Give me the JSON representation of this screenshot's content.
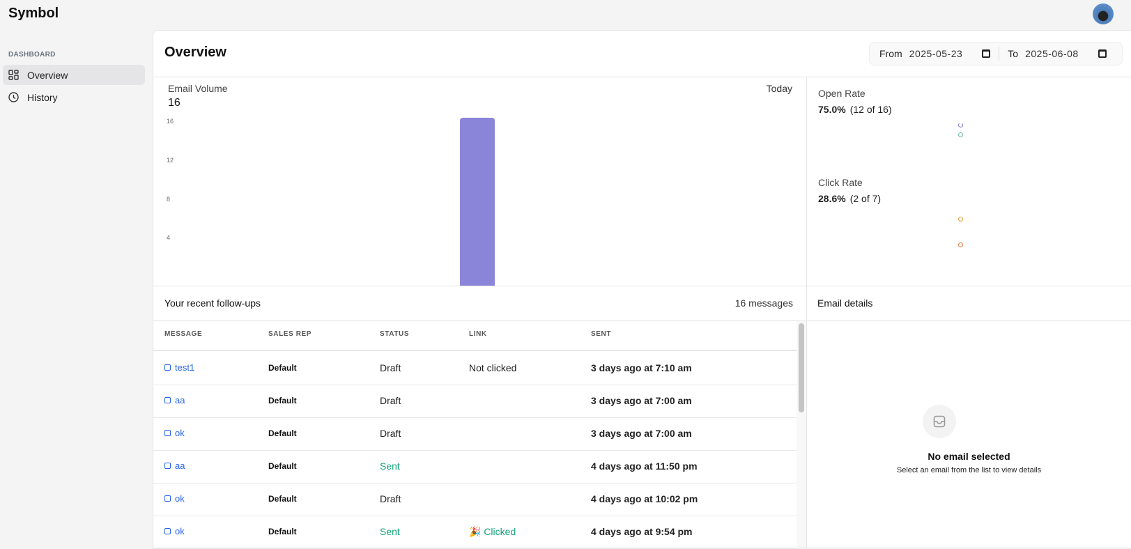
{
  "app": {
    "title": "Symbol"
  },
  "sidebar": {
    "section": "DASHBOARD",
    "items": [
      {
        "label": "Overview",
        "icon": "grid-icon",
        "active": true
      },
      {
        "label": "History",
        "icon": "clock-icon",
        "active": false
      }
    ]
  },
  "header": {
    "title": "Overview",
    "from_label": "From",
    "from_value": "2025-05-23",
    "to_label": "To",
    "to_value": "2025-06-08"
  },
  "volume": {
    "label": "Email Volume",
    "value": "16",
    "range_label": "Today"
  },
  "chart_data": [
    {
      "type": "bar",
      "title": "Email Volume",
      "categories": [
        "Today"
      ],
      "values": [
        16
      ],
      "yticks": [
        4,
        8,
        12,
        16
      ],
      "ylim": [
        0,
        16
      ],
      "color": "#8b85d9"
    },
    {
      "type": "scatter",
      "title": "Open Rate",
      "colors": [
        "#7c7ce0",
        "#6fb8a8"
      ]
    },
    {
      "type": "scatter",
      "title": "Click Rate",
      "colors": [
        "#e89a3c",
        "#e07a3c"
      ]
    }
  ],
  "open_rate": {
    "label": "Open Rate",
    "value": "75.0%",
    "detail": "(12 of 16)"
  },
  "click_rate": {
    "label": "Click Rate",
    "value": "28.6%",
    "detail": "(2 of 7)"
  },
  "followups": {
    "title": "Your recent follow-ups",
    "count": "16 messages",
    "columns": [
      "MESSAGE",
      "SALES REP",
      "STATUS",
      "LINK",
      "SENT"
    ],
    "rows": [
      {
        "message": "test1",
        "rep": "Default",
        "status": "Draft",
        "link": "Not clicked",
        "sent": "3 days ago at 7:10 am"
      },
      {
        "message": "aa",
        "rep": "Default",
        "status": "Draft",
        "link": "",
        "sent": "3 days ago at 7:00 am"
      },
      {
        "message": "ok",
        "rep": "Default",
        "status": "Draft",
        "link": "",
        "sent": "3 days ago at 7:00 am"
      },
      {
        "message": "aa",
        "rep": "Default",
        "status": "Sent",
        "link": "",
        "sent": "4 days ago at 11:50 pm"
      },
      {
        "message": "ok",
        "rep": "Default",
        "status": "Draft",
        "link": "",
        "sent": "4 days ago at 10:02 pm"
      },
      {
        "message": "ok",
        "rep": "Default",
        "status": "Sent",
        "link": "🎉 Clicked",
        "sent": "4 days ago at 9:54 pm"
      }
    ]
  },
  "details": {
    "title": "Email details",
    "empty_title": "No email selected",
    "empty_text": "Select an email from the list to view details"
  },
  "colors": {
    "sent": "#16a37a",
    "link": "#2563eb",
    "bar": "#8b85d9"
  }
}
